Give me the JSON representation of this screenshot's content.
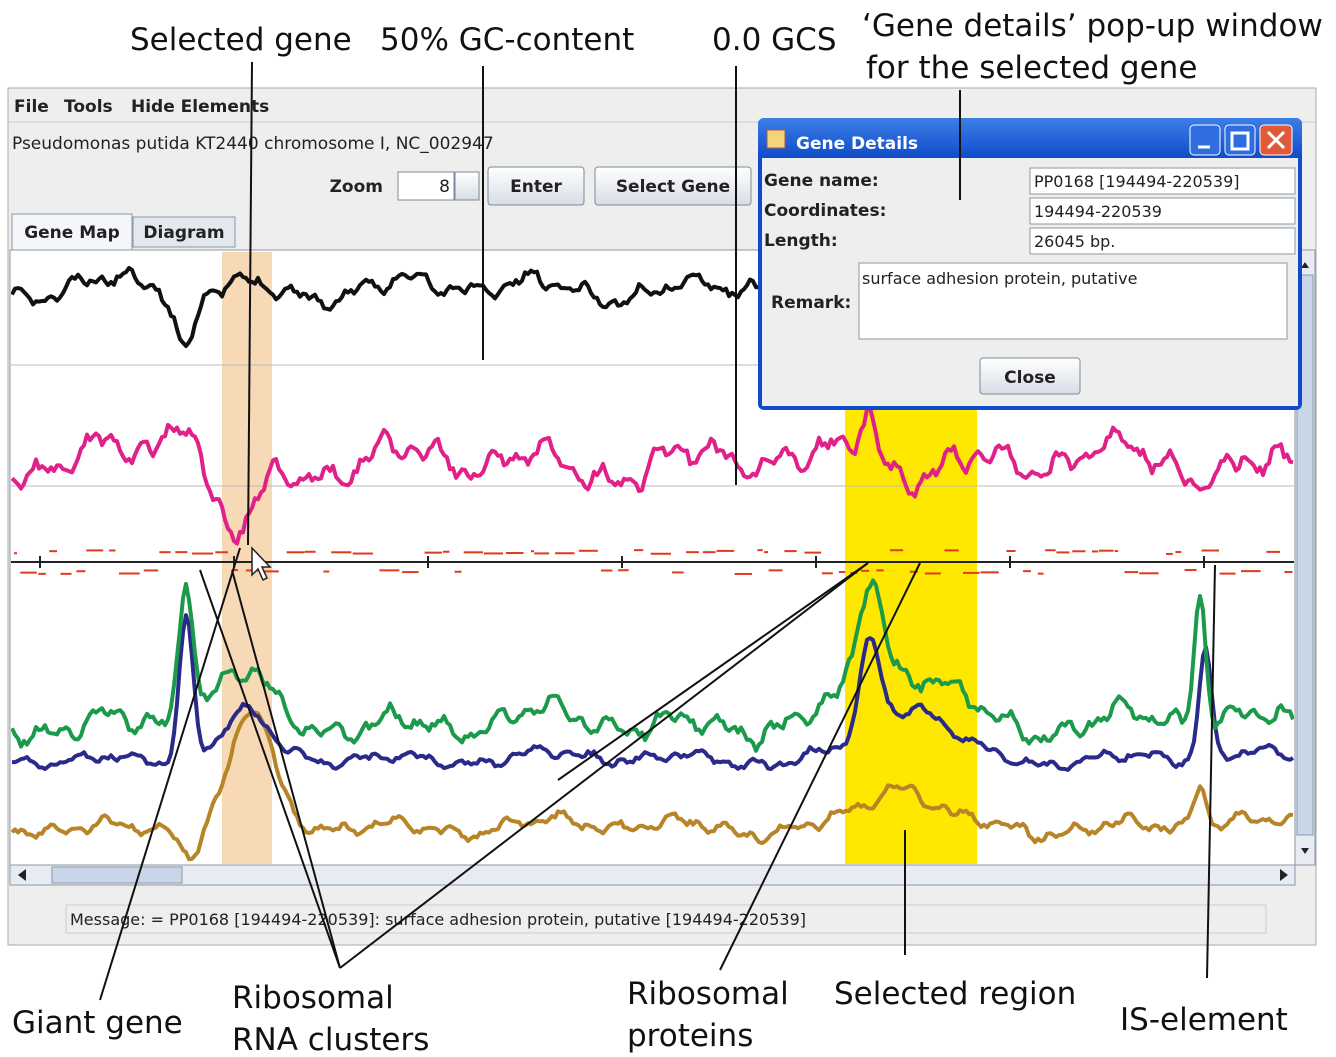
{
  "annotations": {
    "selected_gene": "Selected gene",
    "gc_content": "50% GC-content",
    "gcs": "0.0 GCS",
    "popup": [
      "‘Gene details’ pop-up window",
      "for the selected gene"
    ],
    "giant_gene": "Giant gene",
    "rrna": [
      "Ribosomal",
      "RNA clusters"
    ],
    "ribosomal_proteins": [
      "Ribosomal",
      "proteins"
    ],
    "selected_region": "Selected region",
    "is_element": "IS-element"
  },
  "menu": [
    "File",
    "Tools",
    "Hide Elements"
  ],
  "genome": "Pseudomonas putida KT2440 chromosome I, NC_002947",
  "toolbar": {
    "zoom_label": "Zoom",
    "zoom_value": "8",
    "buttons": [
      "Enter",
      "Select Gene"
    ]
  },
  "tabs": [
    "Gene Map",
    "Diagram"
  ],
  "dialog": {
    "title": "Gene Details",
    "fields": [
      {
        "label": "Gene name:",
        "value": "PP0168 [194494-220539]"
      },
      {
        "label": "Coordinates:",
        "value": "194494-220539"
      },
      {
        "label": "Length:",
        "value": "26045 bp."
      }
    ],
    "remark_label": "Remark:",
    "remark": "surface adhesion protein, putative",
    "button": "Close"
  },
  "status": "Message: = PP0168 [194494-220539]: surface adhesion protein, putative [194494-220539]"
}
